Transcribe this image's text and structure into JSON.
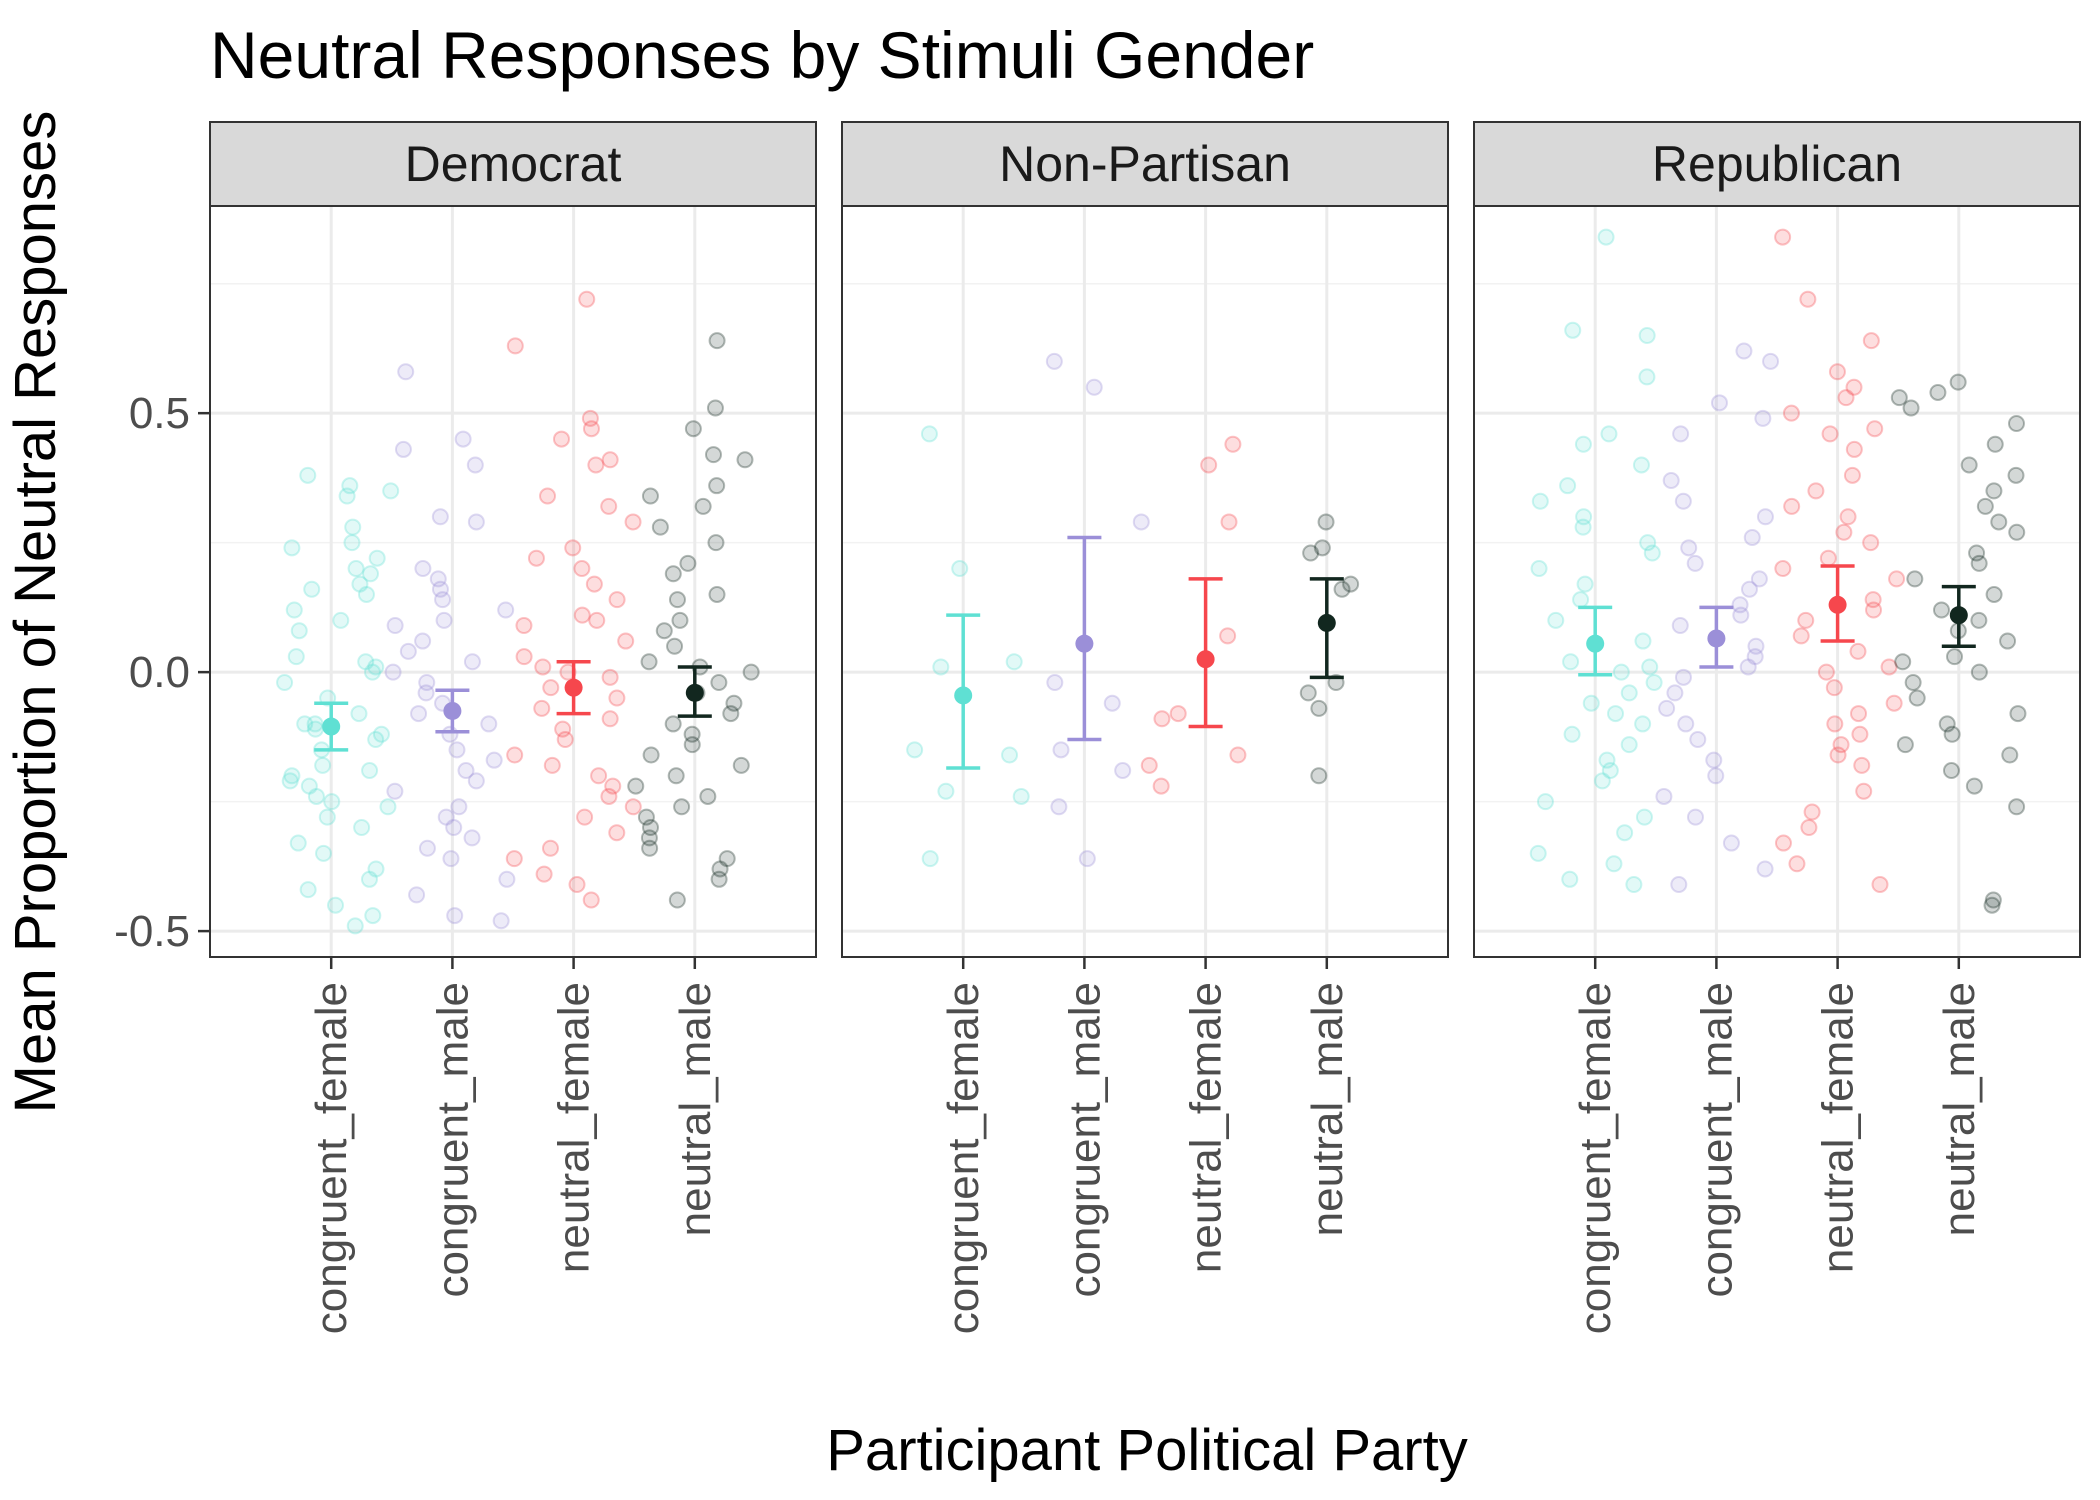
{
  "chart_data": {
    "type": "scatter",
    "title": "Neutral Responses by Stimuli Gender",
    "xlabel": "Participant Political Party",
    "ylabel": "Mean Proportion of Neutral Responses",
    "ylim": [
      -0.55,
      0.9
    ],
    "y_ticks": [
      -0.5,
      0.0,
      0.5
    ],
    "y_tick_labels": [
      "-0.5",
      "0.0",
      "0.5"
    ],
    "categories": [
      "congruent_female",
      "congruent_male",
      "neutral_female",
      "neutral_male"
    ],
    "colors": {
      "congruent_female": "#5fe0d3",
      "congruent_male": "#9b8fd8",
      "neutral_female": "#f6474d",
      "neutral_male": "#12271f"
    },
    "grid": true,
    "legend": "none",
    "panels": [
      {
        "name": "Democrat",
        "summary": [
          {
            "category": "congruent_female",
            "mean": -0.105,
            "lower": -0.15,
            "upper": -0.06
          },
          {
            "category": "congruent_male",
            "mean": -0.075,
            "lower": -0.115,
            "upper": -0.035
          },
          {
            "category": "neutral_female",
            "mean": -0.03,
            "lower": -0.08,
            "upper": 0.02
          },
          {
            "category": "neutral_male",
            "mean": -0.04,
            "lower": -0.085,
            "upper": 0.01
          }
        ],
        "points": {
          "congruent_female": [
            0.36,
            0.38,
            0.34,
            0.35,
            0.28,
            0.25,
            0.24,
            0.22,
            0.2,
            0.19,
            0.17,
            0.16,
            0.15,
            0.12,
            0.1,
            0.08,
            0.03,
            0.02,
            0.01,
            0.0,
            -0.02,
            -0.05,
            -0.08,
            -0.1,
            -0.1,
            -0.11,
            -0.12,
            -0.13,
            -0.15,
            -0.18,
            -0.19,
            -0.2,
            -0.21,
            -0.22,
            -0.24,
            -0.25,
            -0.26,
            -0.28,
            -0.3,
            -0.33,
            -0.35,
            -0.38,
            -0.4,
            -0.42,
            -0.45,
            -0.47,
            -0.49
          ],
          "congruent_male": [
            0.58,
            0.45,
            0.43,
            0.4,
            0.3,
            0.29,
            0.2,
            0.18,
            0.16,
            0.14,
            0.12,
            0.1,
            0.09,
            0.06,
            0.04,
            0.02,
            0.0,
            -0.02,
            -0.04,
            -0.06,
            -0.08,
            -0.1,
            -0.12,
            -0.15,
            -0.17,
            -0.19,
            -0.21,
            -0.23,
            -0.26,
            -0.28,
            -0.3,
            -0.32,
            -0.34,
            -0.36,
            -0.4,
            -0.43,
            -0.47,
            -0.48
          ],
          "neutral_female": [
            0.72,
            0.63,
            0.49,
            0.47,
            0.45,
            0.41,
            0.4,
            0.34,
            0.32,
            0.29,
            0.24,
            0.22,
            0.2,
            0.17,
            0.14,
            0.11,
            0.1,
            0.09,
            0.06,
            0.03,
            0.01,
            0.0,
            -0.01,
            -0.03,
            -0.05,
            -0.07,
            -0.09,
            -0.11,
            -0.13,
            -0.16,
            -0.18,
            -0.2,
            -0.22,
            -0.24,
            -0.26,
            -0.28,
            -0.31,
            -0.34,
            -0.36,
            -0.39,
            -0.41,
            -0.44
          ],
          "neutral_male": [
            0.64,
            0.51,
            0.47,
            0.42,
            0.41,
            0.36,
            0.34,
            0.32,
            0.28,
            0.25,
            0.21,
            0.19,
            0.15,
            0.14,
            0.1,
            0.08,
            0.05,
            0.02,
            0.01,
            0.0,
            -0.02,
            -0.04,
            -0.06,
            -0.08,
            -0.1,
            -0.12,
            -0.14,
            -0.16,
            -0.18,
            -0.2,
            -0.22,
            -0.24,
            -0.26,
            -0.28,
            -0.3,
            -0.32,
            -0.34,
            -0.36,
            -0.38,
            -0.4,
            -0.44
          ]
        }
      },
      {
        "name": "Non-Partisan",
        "summary": [
          {
            "category": "congruent_female",
            "mean": -0.045,
            "lower": -0.185,
            "upper": 0.11
          },
          {
            "category": "congruent_male",
            "mean": 0.055,
            "lower": -0.13,
            "upper": 0.26
          },
          {
            "category": "neutral_female",
            "mean": 0.025,
            "lower": -0.105,
            "upper": 0.18
          },
          {
            "category": "neutral_male",
            "mean": 0.095,
            "lower": -0.01,
            "upper": 0.18
          }
        ],
        "points": {
          "congruent_female": [
            0.46,
            0.2,
            0.02,
            0.01,
            -0.15,
            -0.16,
            -0.23,
            -0.24,
            -0.36
          ],
          "congruent_male": [
            0.6,
            0.55,
            0.29,
            -0.02,
            -0.06,
            -0.15,
            -0.19,
            -0.26,
            -0.36
          ],
          "neutral_female": [
            0.44,
            0.4,
            0.29,
            0.07,
            -0.08,
            -0.09,
            -0.16,
            -0.18,
            -0.22
          ],
          "neutral_male": [
            0.29,
            0.24,
            0.23,
            0.17,
            0.16,
            -0.02,
            -0.04,
            -0.07,
            -0.2
          ]
        }
      },
      {
        "name": "Republican",
        "summary": [
          {
            "category": "congruent_female",
            "mean": 0.055,
            "lower": -0.005,
            "upper": 0.125
          },
          {
            "category": "congruent_male",
            "mean": 0.065,
            "lower": 0.01,
            "upper": 0.125
          },
          {
            "category": "neutral_female",
            "mean": 0.13,
            "lower": 0.06,
            "upper": 0.205
          },
          {
            "category": "neutral_male",
            "mean": 0.11,
            "lower": 0.05,
            "upper": 0.165
          }
        ],
        "points": {
          "congruent_female": [
            0.84,
            0.66,
            0.65,
            0.57,
            0.46,
            0.44,
            0.4,
            0.36,
            0.33,
            0.3,
            0.28,
            0.25,
            0.23,
            0.2,
            0.17,
            0.14,
            0.1,
            0.06,
            0.02,
            0.01,
            0.0,
            -0.02,
            -0.04,
            -0.06,
            -0.08,
            -0.1,
            -0.12,
            -0.14,
            -0.17,
            -0.19,
            -0.21,
            -0.25,
            -0.28,
            -0.31,
            -0.35,
            -0.37,
            -0.4,
            -0.41
          ],
          "congruent_male": [
            0.62,
            0.6,
            0.52,
            0.49,
            0.46,
            0.37,
            0.33,
            0.3,
            0.26,
            0.24,
            0.21,
            0.18,
            0.16,
            0.13,
            0.11,
            0.09,
            0.05,
            0.03,
            0.01,
            -0.01,
            -0.04,
            -0.07,
            -0.1,
            -0.13,
            -0.17,
            -0.2,
            -0.24,
            -0.28,
            -0.33,
            -0.38,
            -0.41
          ],
          "neutral_female": [
            0.84,
            0.72,
            0.64,
            0.58,
            0.55,
            0.53,
            0.5,
            0.47,
            0.46,
            0.43,
            0.38,
            0.35,
            0.32,
            0.3,
            0.27,
            0.25,
            0.22,
            0.2,
            0.18,
            0.14,
            0.12,
            0.1,
            0.07,
            0.04,
            0.01,
            0.0,
            -0.03,
            -0.06,
            -0.08,
            -0.1,
            -0.12,
            -0.14,
            -0.16,
            -0.18,
            -0.23,
            -0.27,
            -0.3,
            -0.33,
            -0.37,
            -0.41
          ],
          "neutral_male": [
            0.56,
            0.54,
            0.53,
            0.51,
            0.48,
            0.44,
            0.4,
            0.38,
            0.35,
            0.32,
            0.29,
            0.27,
            0.23,
            0.21,
            0.18,
            0.15,
            0.12,
            0.1,
            0.08,
            0.06,
            0.03,
            0.02,
            0.0,
            -0.02,
            -0.05,
            -0.08,
            -0.1,
            -0.12,
            -0.14,
            -0.16,
            -0.19,
            -0.22,
            -0.26,
            -0.44,
            -0.45
          ]
        }
      }
    ]
  }
}
